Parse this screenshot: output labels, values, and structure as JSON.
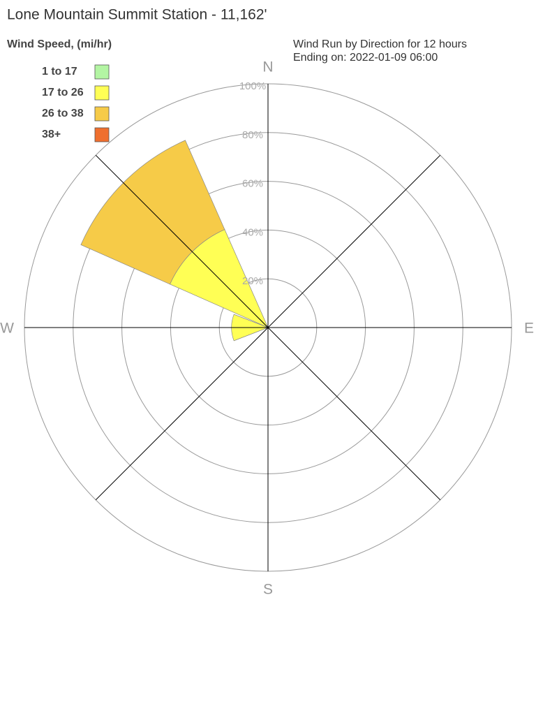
{
  "chart_data": {
    "type": "windrose",
    "title": "Lone Mountain Summit Station - 11,162'",
    "legend_title": "Wind Speed, (mi/hr)",
    "subtitle": [
      "Wind Run by Direction for 12 hours",
      "Ending on: 2022-01-09 06:00"
    ],
    "categories": [
      "N",
      null,
      "E",
      null,
      "S",
      null,
      "W",
      null
    ],
    "series": [
      {
        "name": "1 to 17",
        "color": "#b3f5a3",
        "values": [
          0,
          0,
          0,
          0,
          0,
          0,
          1,
          1
        ]
      },
      {
        "name": "17 to 26",
        "color": "#ffff55",
        "values": [
          0,
          0,
          0,
          0,
          0,
          0,
          14,
          43
        ]
      },
      {
        "name": "26 to 38",
        "color": "#f6cb48",
        "values": [
          0,
          0,
          0,
          0,
          0,
          0,
          0,
          40
        ]
      },
      {
        "name": "38+",
        "color": "#ef6f2e",
        "values": [
          0,
          0,
          0,
          0,
          0,
          0,
          0,
          0
        ]
      }
    ],
    "rlim": [
      0,
      100
    ],
    "rticks": [
      {
        "value": 20,
        "label": "20%"
      },
      {
        "value": 40,
        "label": "40%"
      },
      {
        "value": 60,
        "label": "60%"
      },
      {
        "value": 80,
        "label": "80%"
      },
      {
        "value": 100,
        "label": "100%"
      }
    ],
    "grid": true
  }
}
